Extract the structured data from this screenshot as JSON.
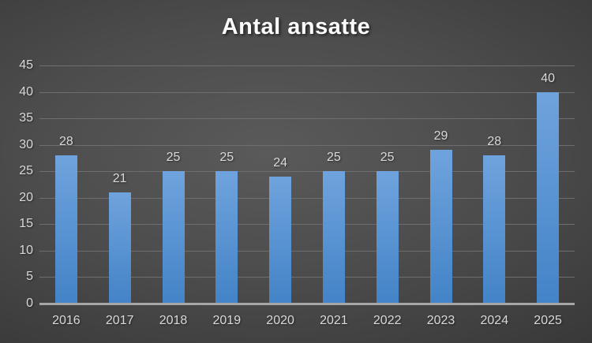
{
  "chart_data": {
    "type": "bar",
    "title": "Antal ansatte",
    "categories": [
      "2016",
      "2017",
      "2018",
      "2019",
      "2020",
      "2021",
      "2022",
      "2023",
      "2024",
      "2025"
    ],
    "values": [
      28,
      21,
      25,
      25,
      24,
      25,
      25,
      29,
      28,
      40
    ],
    "xlabel": "",
    "ylabel": "",
    "ylim": [
      0,
      45
    ],
    "ytick_step": 5,
    "yticks": [
      0,
      5,
      10,
      15,
      20,
      25,
      30,
      35,
      40,
      45
    ],
    "grid": true,
    "legend_position": "none"
  },
  "colors": {
    "background_center": "#5a5a5a",
    "background_edge": "#272727",
    "bar_gradient_top": "#6fa3dd",
    "bar_gradient_bottom": "#4383c7",
    "gridline": "#6e6e6e",
    "axis_line": "#a6a6a6",
    "tick_label": "#d9d9d9",
    "data_label": "#d9d9d9",
    "title": "#fbfbfb"
  }
}
